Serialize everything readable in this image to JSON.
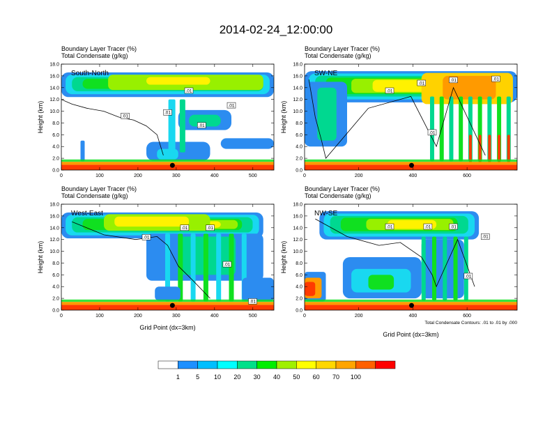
{
  "title": "2014-02-24_12:00:00",
  "chart_data": [
    {
      "type": "heatmap",
      "panel": "South-North",
      "label_left_1": "Boundary Layer Tracer   (%)",
      "label_left_2": "Total Condensate   (g/kg)",
      "xlabel": "",
      "ylabel": "Height (km)",
      "xlim": [
        0,
        555
      ],
      "ylim": [
        0,
        18
      ],
      "xticks": [
        0,
        100,
        200,
        300,
        400,
        500
      ],
      "yticks": [
        "0.0",
        "2.0",
        "4.0",
        "6.0",
        "8.0",
        "10.0",
        "12.0",
        "14.0",
        "16.0",
        "18.0"
      ],
      "contour_labels": [
        ".01",
        ".01",
        ".01",
        ".01",
        ".01"
      ],
      "marker_x": 290
    },
    {
      "type": "heatmap",
      "panel": "SW-NE",
      "label_left_1": "Boundary Layer Tracer   (%)",
      "label_left_2": "Total Condensate   (g/kg)",
      "xlabel": "",
      "ylabel": "Height (km)",
      "xlim": [
        0,
        785
      ],
      "ylim": [
        0,
        18
      ],
      "xticks": [
        0,
        200,
        400,
        600
      ],
      "yticks": [
        "0.0",
        "2.0",
        "4.0",
        "6.0",
        "8.0",
        "10.0",
        "12.0",
        "14.0",
        "16.0",
        "18.0"
      ],
      "contour_labels": [
        ".01",
        ".01",
        ".01",
        ".01",
        ".01"
      ],
      "marker_x": 395
    },
    {
      "type": "heatmap",
      "panel": "West-East",
      "label_left_1": "Boundary Layer Tracer   (%)",
      "label_left_2": "Total Condensate   (g/kg)",
      "xlabel": "Grid Point (dx=3km)",
      "ylabel": "Height (km)",
      "xlim": [
        0,
        555
      ],
      "ylim": [
        0,
        18
      ],
      "xticks": [
        0,
        100,
        200,
        300,
        400,
        500
      ],
      "yticks": [
        "0.0",
        "2.0",
        "4.0",
        "6.0",
        "8.0",
        "10.0",
        "12.0",
        "14.0",
        "16.0",
        "18.0"
      ],
      "contour_labels": [
        ".01",
        ".01",
        ".01",
        ".01",
        ".01"
      ],
      "marker_x": 290
    },
    {
      "type": "heatmap",
      "panel": "NW-SE",
      "label_left_1": "Boundary Layer Tracer   (%)",
      "label_left_2": "Total Condensate   (g/kg)",
      "xlabel": "Grid Point (dx=3km)",
      "ylabel": "Height (km)",
      "xlim": [
        0,
        785
      ],
      "ylim": [
        0,
        18
      ],
      "xticks": [
        0,
        200,
        400,
        600
      ],
      "yticks": [
        "0.0",
        "2.0",
        "4.0",
        "6.0",
        "8.0",
        "10.0",
        "12.0",
        "14.0",
        "16.0",
        "18.0"
      ],
      "contour_labels": [
        ".01",
        ".01",
        ".01",
        ".01",
        ".01"
      ],
      "marker_x": 395,
      "footnote": "Total Condensate Contours: .01 to .01 by .000"
    }
  ],
  "colorbar": {
    "labels": [
      "1",
      "5",
      "10",
      "20",
      "30",
      "40",
      "50",
      "60",
      "70",
      "100"
    ],
    "colors": [
      "#ffffff",
      "#1e90ff",
      "#00bfff",
      "#00ffff",
      "#00e08a",
      "#00ee00",
      "#a0f000",
      "#ffff00",
      "#ffd700",
      "#ffa500",
      "#ff6000",
      "#ff0000"
    ]
  }
}
